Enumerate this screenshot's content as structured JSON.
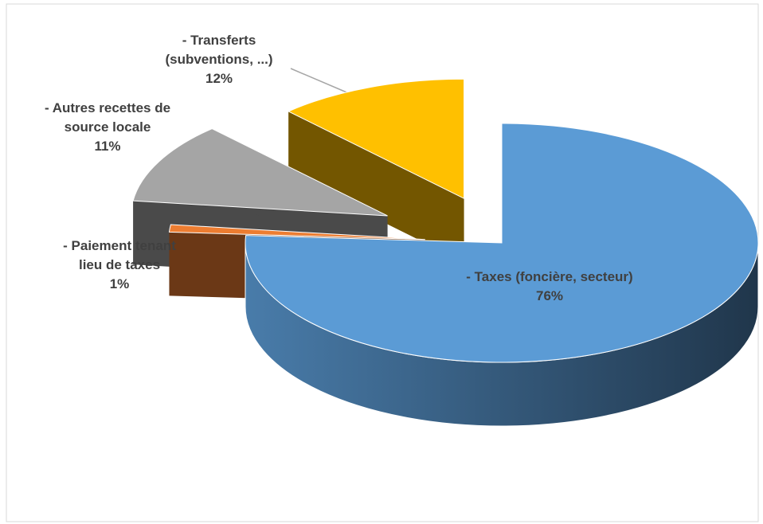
{
  "chart_data": {
    "type": "pie3d",
    "categories": [
      "- Taxes (foncière, secteur)",
      "- Paiement tenant lieu de taxes",
      "- Autres recettes de source locale",
      "- Transferts (subventions, ...)"
    ],
    "values": [
      76,
      1,
      11,
      12
    ],
    "value_labels": [
      "76%",
      "1%",
      "11%",
      "12%"
    ],
    "colors": [
      "#5b9bd5",
      "#ed7d31",
      "#a5a5a5",
      "#ffc000"
    ]
  }
}
